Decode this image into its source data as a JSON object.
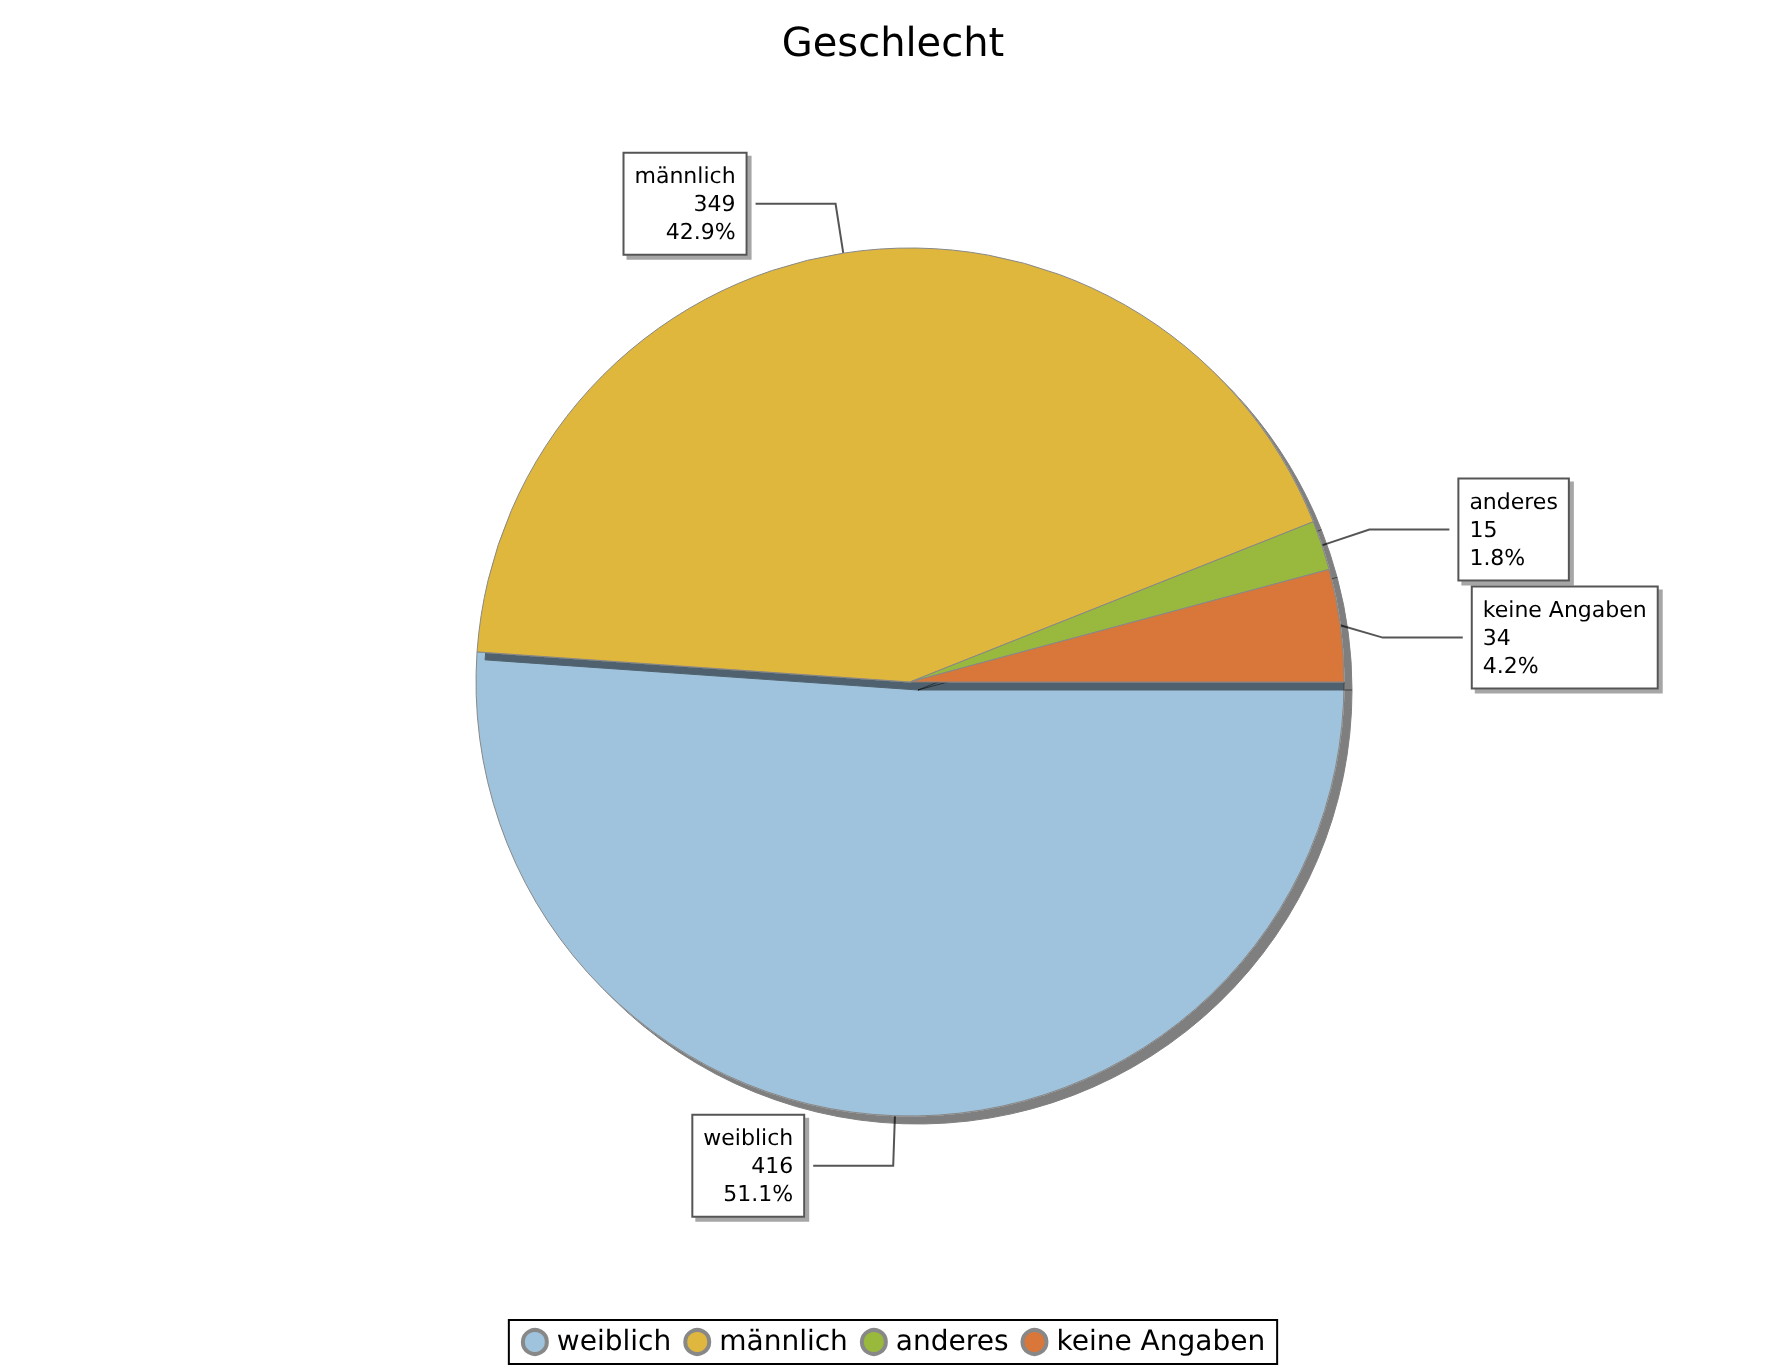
{
  "chart_data": {
    "type": "pie",
    "title": "Geschlecht",
    "categories": [
      "weiblich",
      "männlich",
      "anderes",
      "keine Angaben"
    ],
    "values": [
      416,
      349,
      15,
      34
    ],
    "value_labels": [
      "416\n51.1%",
      "349\n42.9%",
      "15\n1.8%",
      "34\n4.2%"
    ],
    "colors": [
      "#9fc3dc",
      "#e0b73e",
      "#98b93c",
      "#d9773a"
    ],
    "legend": "bottom"
  }
}
